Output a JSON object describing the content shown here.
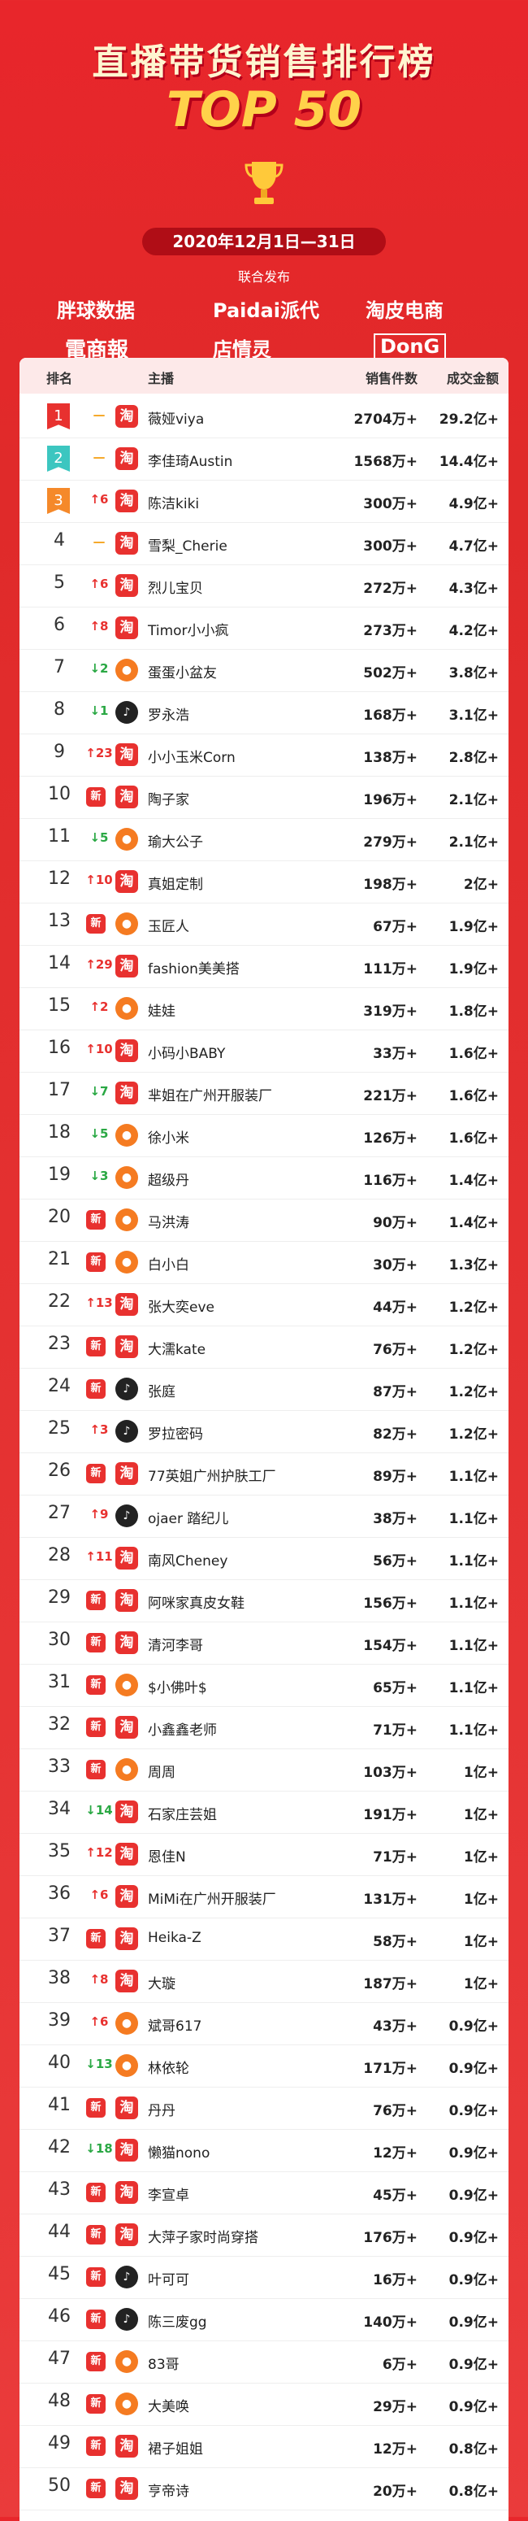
{
  "header": {
    "title": "直播带货销售排行榜",
    "subtitle": "TOP 50",
    "date": "2020年12月1日—31日",
    "publish": "联合发布",
    "logos": [
      "胖球数据",
      "Paidai派代",
      "淘皮电商",
      "電商報",
      "店情灵",
      "DonG"
    ]
  },
  "table": {
    "columns": [
      "排名",
      "主播",
      "销售件数",
      "成交金额"
    ],
    "rows": [
      {
        "rank": 1,
        "change": "—",
        "icon": "淘",
        "name": "薇娅viya",
        "sales": "2704万+",
        "amount": "29.2亿+"
      },
      {
        "rank": 2,
        "change": "—",
        "icon": "淘",
        "name": "李佳琦Austin",
        "sales": "1568万+",
        "amount": "14.4亿+"
      },
      {
        "rank": 3,
        "change": "↑6",
        "icon": "淘",
        "name": "陈洁kiki",
        "sales": "300万+",
        "amount": "4.9亿+"
      },
      {
        "rank": 4,
        "change": "—",
        "icon": "淘",
        "name": "雪梨_Cherie",
        "sales": "300万+",
        "amount": "4.7亿+"
      },
      {
        "rank": 5,
        "change": "↑6",
        "icon": "淘",
        "name": "烈儿宝贝",
        "sales": "272万+",
        "amount": "4.3亿+"
      },
      {
        "rank": 6,
        "change": "↑8",
        "icon": "淘",
        "name": "Timor小小疯",
        "sales": "273万+",
        "amount": "4.2亿+"
      },
      {
        "rank": 7,
        "change": "↓2",
        "icon": "kuaishou",
        "name": "蛋蛋小盆友",
        "sales": "502万+",
        "amount": "3.8亿+"
      },
      {
        "rank": 8,
        "change": "↓1",
        "icon": "douyin",
        "name": "罗永浩",
        "sales": "168万+",
        "amount": "3.1亿+"
      },
      {
        "rank": 9,
        "change": "↑23",
        "icon": "淘",
        "name": "小小玉米Corn",
        "sales": "138万+",
        "amount": "2.8亿+"
      },
      {
        "rank": 10,
        "change": "新",
        "icon": "淘",
        "name": "陶子家",
        "sales": "196万+",
        "amount": "2.1亿+"
      },
      {
        "rank": 11,
        "change": "↓5",
        "icon": "kuaishou",
        "name": "瑜大公子",
        "sales": "279万+",
        "amount": "2.1亿+"
      },
      {
        "rank": 12,
        "change": "↑10",
        "icon": "淘",
        "name": "真姐定制",
        "sales": "198万+",
        "amount": "2亿+"
      },
      {
        "rank": 13,
        "change": "新",
        "icon": "kuaishou",
        "name": "玉匠人",
        "sales": "67万+",
        "amount": "1.9亿+"
      },
      {
        "rank": 14,
        "change": "↑29",
        "icon": "淘",
        "name": "fashion美美搭",
        "sales": "111万+",
        "amount": "1.9亿+"
      },
      {
        "rank": 15,
        "change": "↑2",
        "icon": "kuaishou",
        "name": "娃娃",
        "sales": "319万+",
        "amount": "1.8亿+"
      },
      {
        "rank": 16,
        "change": "↑10",
        "icon": "淘",
        "name": "小码小BABY",
        "sales": "33万+",
        "amount": "1.6亿+"
      },
      {
        "rank": 17,
        "change": "↓7",
        "icon": "淘",
        "name": "芈姐在广州开服装厂",
        "sales": "221万+",
        "amount": "1.6亿+"
      },
      {
        "rank": 18,
        "change": "↓5",
        "icon": "kuaishou",
        "name": "徐小米",
        "sales": "126万+",
        "amount": "1.6亿+"
      },
      {
        "rank": 19,
        "change": "↓3",
        "icon": "kuaishou",
        "name": "超级丹",
        "sales": "116万+",
        "amount": "1.4亿+"
      },
      {
        "rank": 20,
        "change": "新",
        "icon": "kuaishou",
        "name": "马洪涛",
        "sales": "90万+",
        "amount": "1.4亿+"
      },
      {
        "rank": 21,
        "change": "新",
        "icon": "kuaishou",
        "name": "白小白",
        "sales": "30万+",
        "amount": "1.3亿+"
      },
      {
        "rank": 22,
        "change": "↑13",
        "icon": "淘",
        "name": "张大奕eve",
        "sales": "44万+",
        "amount": "1.2亿+"
      },
      {
        "rank": 23,
        "change": "新",
        "icon": "淘",
        "name": "大濡kate",
        "sales": "76万+",
        "amount": "1.2亿+"
      },
      {
        "rank": 24,
        "change": "新",
        "icon": "douyin",
        "name": "张庭",
        "sales": "87万+",
        "amount": "1.2亿+"
      },
      {
        "rank": 25,
        "change": "↑3",
        "icon": "douyin",
        "name": "罗拉密码",
        "sales": "82万+",
        "amount": "1.2亿+"
      },
      {
        "rank": 26,
        "change": "新",
        "icon": "淘",
        "name": "77英姐广州护肤工厂",
        "sales": "89万+",
        "amount": "1.1亿+"
      },
      {
        "rank": 27,
        "change": "↑9",
        "icon": "douyin",
        "name": "ojaer 踏纪儿",
        "sales": "38万+",
        "amount": "1.1亿+"
      },
      {
        "rank": 28,
        "change": "↑11",
        "icon": "淘",
        "name": "南风Cheney",
        "sales": "56万+",
        "amount": "1.1亿+"
      },
      {
        "rank": 29,
        "change": "新",
        "icon": "淘",
        "name": "阿咪家真皮女鞋",
        "sales": "156万+",
        "amount": "1.1亿+"
      },
      {
        "rank": 30,
        "change": "新",
        "icon": "淘",
        "name": "清河李哥",
        "sales": "154万+",
        "amount": "1.1亿+"
      },
      {
        "rank": 31,
        "change": "新",
        "icon": "kuaishou",
        "name": "$小佛叶$",
        "sales": "65万+",
        "amount": "1.1亿+"
      },
      {
        "rank": 32,
        "change": "新",
        "icon": "淘",
        "name": "小鑫鑫老师",
        "sales": "71万+",
        "amount": "1.1亿+"
      },
      {
        "rank": 33,
        "change": "新",
        "icon": "kuaishou",
        "name": "周周",
        "sales": "103万+",
        "amount": "1亿+"
      },
      {
        "rank": 34,
        "change": "↓14",
        "icon": "淘",
        "name": "石家庄芸姐",
        "sales": "191万+",
        "amount": "1亿+"
      },
      {
        "rank": 35,
        "change": "↑12",
        "icon": "淘",
        "name": "恩佳N",
        "sales": "71万+",
        "amount": "1亿+"
      },
      {
        "rank": 36,
        "change": "↑6",
        "icon": "淘",
        "name": "MiMi在广州开服装厂",
        "sales": "131万+",
        "amount": "1亿+"
      },
      {
        "rank": 37,
        "change": "新",
        "icon": "淘",
        "name": "Heika-Z",
        "sales": "58万+",
        "amount": "1亿+"
      },
      {
        "rank": 38,
        "change": "↑8",
        "icon": "淘",
        "name": "大璇",
        "sales": "187万+",
        "amount": "1亿+"
      },
      {
        "rank": 39,
        "change": "↑6",
        "icon": "kuaishou",
        "name": "斌哥617",
        "sales": "43万+",
        "amount": "0.9亿+"
      },
      {
        "rank": 40,
        "change": "↓13",
        "icon": "kuaishou",
        "name": "林依轮",
        "sales": "171万+",
        "amount": "0.9亿+"
      },
      {
        "rank": 41,
        "change": "新",
        "icon": "淘",
        "name": "丹丹",
        "sales": "76万+",
        "amount": "0.9亿+"
      },
      {
        "rank": 42,
        "change": "↓18",
        "icon": "淘",
        "name": "懒猫nono",
        "sales": "12万+",
        "amount": "0.9亿+"
      },
      {
        "rank": 43,
        "change": "新",
        "icon": "淘",
        "name": "李宣卓",
        "sales": "45万+",
        "amount": "0.9亿+"
      },
      {
        "rank": 44,
        "change": "新",
        "icon": "淘",
        "name": "大萍子家时尚穿搭",
        "sales": "176万+",
        "amount": "0.9亿+"
      },
      {
        "rank": 45,
        "change": "新",
        "icon": "douyin",
        "name": "叶可可",
        "sales": "16万+",
        "amount": "0.9亿+"
      },
      {
        "rank": 46,
        "change": "新",
        "icon": "douyin",
        "name": "陈三废gg",
        "sales": "140万+",
        "amount": "0.9亿+"
      },
      {
        "rank": 47,
        "change": "新",
        "icon": "kuaishou",
        "name": "83哥",
        "sales": "6万+",
        "amount": "0.9亿+"
      },
      {
        "rank": 48,
        "change": "新",
        "icon": "kuaishou",
        "name": "大美唤",
        "sales": "29万+",
        "amount": "0.9亿+"
      },
      {
        "rank": 49,
        "change": "新",
        "icon": "淘",
        "name": "裙子姐姐",
        "sales": "12万+",
        "amount": "0.8亿+"
      },
      {
        "rank": 50,
        "change": "新",
        "icon": "淘",
        "name": "亨帝诗",
        "sales": "20万+",
        "amount": "0.8亿+"
      }
    ]
  }
}
